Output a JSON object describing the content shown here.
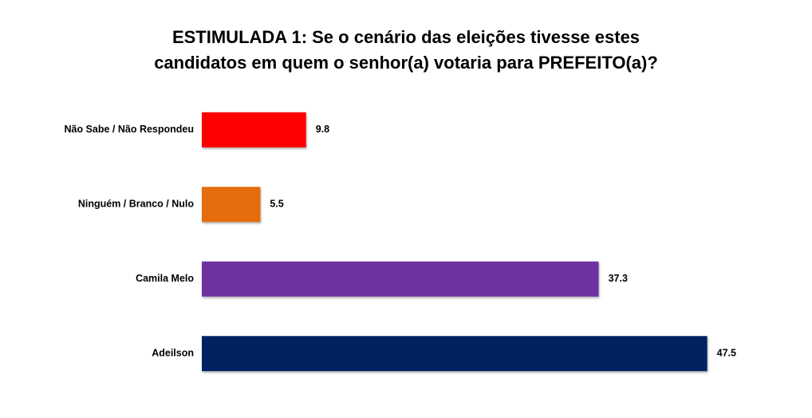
{
  "chart_data": {
    "type": "barh",
    "title": [
      "ESTIMULADA 1: Se o cenário das eleições tivesse estes",
      "candidatos em quem o senhor(a) votaria para PREFEITO(a)?"
    ],
    "categories": [
      "Não Sabe / Não Respondeu",
      "Ninguém / Branco / Nulo",
      "Camila Melo",
      "Adeilson"
    ],
    "values": [
      9.8,
      5.5,
      37.3,
      47.5
    ],
    "colors": [
      "#ff0000",
      "#e46c0a",
      "#7030a0",
      "#002060"
    ],
    "xlim": [
      0,
      50
    ]
  }
}
